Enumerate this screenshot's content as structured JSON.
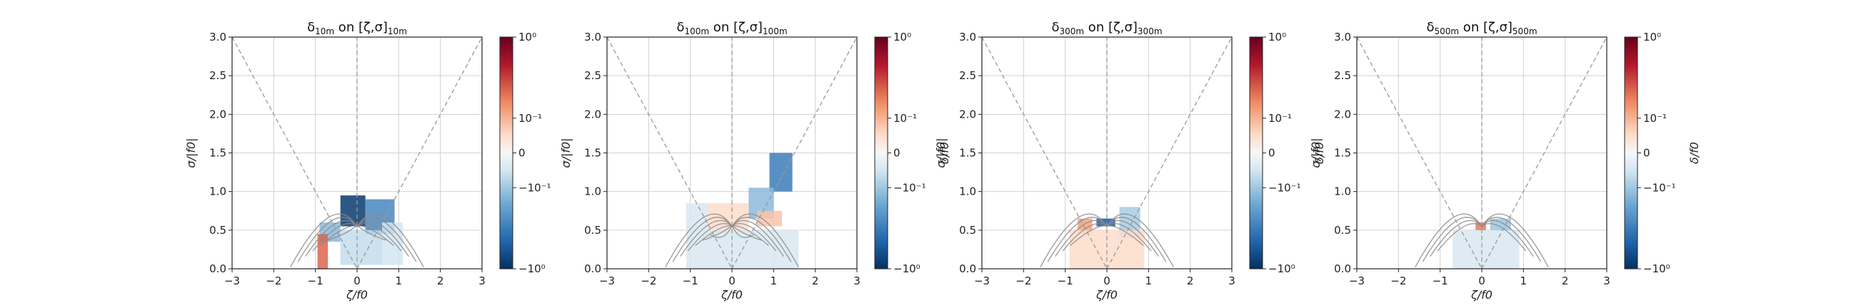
{
  "chart_data": [
    {
      "type": "heatmap",
      "title": "δ10m on [ζ,σ]10m",
      "title_parts": {
        "main": "δ",
        "main_sub": "10m",
        "mid": " on [ζ,σ]",
        "tail_sub": "10m"
      },
      "xlabel": "ζ/f0",
      "ylabel": "σ/|f0|",
      "colorbar_label": "",
      "xlim": [
        -3,
        3
      ],
      "ylim": [
        0,
        3
      ],
      "x_ticks": [
        "−3",
        "−2",
        "−1",
        "0",
        "1",
        "2",
        "3"
      ],
      "y_ticks": [
        "0.0",
        "0.5",
        "1.0",
        "1.5",
        "2.0",
        "2.5",
        "3.0"
      ],
      "colorbar_ticks": [
        "10⁰",
        "10⁻¹",
        "0",
        "−10⁻¹",
        "−10⁰"
      ],
      "colorscale": "RdBu_r symlog",
      "grid": true,
      "patches": [
        {
          "x": [
            -0.4,
            0.2
          ],
          "y": [
            0.55,
            0.95
          ],
          "value": -0.9
        },
        {
          "x": [
            0.2,
            0.9
          ],
          "y": [
            0.45,
            0.9
          ],
          "value": -0.35
        },
        {
          "x": [
            -0.9,
            -0.4
          ],
          "y": [
            0.35,
            0.6
          ],
          "value": -0.15
        },
        {
          "x": [
            -0.95,
            -0.7
          ],
          "y": [
            0.0,
            0.45
          ],
          "value": 0.3
        },
        {
          "x": [
            -0.4,
            0.6
          ],
          "y": [
            0.05,
            0.5
          ],
          "value": -0.06
        },
        {
          "x": [
            0.6,
            1.1
          ],
          "y": [
            0.05,
            0.6
          ],
          "value": -0.04
        }
      ],
      "contour_levels": 6
    },
    {
      "type": "heatmap",
      "title": "δ100m on [ζ,σ]100m",
      "title_parts": {
        "main": "δ",
        "main_sub": "100m",
        "mid": " on [ζ,σ]",
        "tail_sub": "100m"
      },
      "xlabel": "ζ/f0",
      "ylabel": "σ/|f0|",
      "colorbar_label": "δ/f0",
      "xlim": [
        -3,
        3
      ],
      "ylim": [
        0,
        3
      ],
      "x_ticks": [
        "−3",
        "−2",
        "−1",
        "0",
        "1",
        "2",
        "3"
      ],
      "y_ticks": [
        "0.0",
        "0.5",
        "1.0",
        "1.5",
        "2.0",
        "2.5",
        "3.0"
      ],
      "colorbar_ticks": [
        "10⁰",
        "10⁻¹",
        "0",
        "−10⁻¹",
        "−10⁰"
      ],
      "colorscale": "RdBu_r symlog",
      "grid": true,
      "patches": [
        {
          "x": [
            0.9,
            1.45
          ],
          "y": [
            1.0,
            1.5
          ],
          "value": -0.4
        },
        {
          "x": [
            0.4,
            1.0
          ],
          "y": [
            0.65,
            1.05
          ],
          "value": -0.15
        },
        {
          "x": [
            -0.6,
            0.4
          ],
          "y": [
            0.45,
            0.85
          ],
          "value": 0.04
        },
        {
          "x": [
            -1.1,
            -0.6
          ],
          "y": [
            0.0,
            0.85
          ],
          "value": -0.03
        },
        {
          "x": [
            -0.6,
            1.6
          ],
          "y": [
            0.0,
            0.5
          ],
          "value": -0.03
        },
        {
          "x": [
            0.6,
            1.2
          ],
          "y": [
            0.55,
            0.75
          ],
          "value": 0.08
        }
      ],
      "contour_levels": 7
    },
    {
      "type": "heatmap",
      "title": "δ300m on [ζ,σ]300m",
      "title_parts": {
        "main": "δ",
        "main_sub": "300m",
        "mid": " on [ζ,σ]",
        "tail_sub": "300m"
      },
      "xlabel": "ζ/f0",
      "ylabel": "σ/|f0|",
      "colorbar_label": "δ/f0",
      "xlim": [
        -3,
        3
      ],
      "ylim": [
        0,
        3
      ],
      "x_ticks": [
        "−3",
        "−2",
        "−1",
        "0",
        "1",
        "2",
        "3"
      ],
      "y_ticks": [
        "0.0",
        "0.5",
        "1.0",
        "1.5",
        "2.0",
        "2.5",
        "3.0"
      ],
      "colorbar_ticks": [
        "10⁰",
        "10⁻¹",
        "0",
        "−10⁻¹",
        "−10⁰"
      ],
      "colorscale": "RdBu_r symlog",
      "grid": true,
      "patches": [
        {
          "x": [
            -0.25,
            0.2
          ],
          "y": [
            0.55,
            0.65
          ],
          "value": -0.6
        },
        {
          "x": [
            -0.7,
            -0.35
          ],
          "y": [
            0.45,
            0.65
          ],
          "value": 0.15
        },
        {
          "x": [
            0.3,
            0.8
          ],
          "y": [
            0.4,
            0.8
          ],
          "value": -0.1
        },
        {
          "x": [
            -0.9,
            0.9
          ],
          "y": [
            0.0,
            0.5
          ],
          "value": 0.04
        }
      ],
      "contour_levels": 5
    },
    {
      "type": "heatmap",
      "title": "δ500m on [ζ,σ]500m",
      "title_parts": {
        "main": "δ",
        "main_sub": "500m",
        "mid": " on [ζ,σ]",
        "tail_sub": "500m"
      },
      "xlabel": "ζ/f0",
      "ylabel": "σ/|f0|",
      "colorbar_label": "δ/f0",
      "xlim": [
        -3,
        3
      ],
      "ylim": [
        0,
        3
      ],
      "x_ticks": [
        "−3",
        "−2",
        "−1",
        "0",
        "1",
        "2",
        "3"
      ],
      "y_ticks": [
        "0.0",
        "0.5",
        "1.0",
        "1.5",
        "2.0",
        "2.5",
        "3.0"
      ],
      "colorbar_ticks": [
        "10⁰",
        "10⁻¹",
        "0",
        "−10⁻¹",
        "−10⁰"
      ],
      "colorscale": "RdBu_r symlog",
      "grid": true,
      "patches": [
        {
          "x": [
            -0.15,
            0.1
          ],
          "y": [
            0.5,
            0.6
          ],
          "value": 0.25
        },
        {
          "x": [
            0.2,
            0.7
          ],
          "y": [
            0.5,
            0.65
          ],
          "value": -0.12
        },
        {
          "x": [
            -0.7,
            0.9
          ],
          "y": [
            0.0,
            0.5
          ],
          "value": -0.03
        }
      ],
      "contour_levels": 4
    }
  ]
}
